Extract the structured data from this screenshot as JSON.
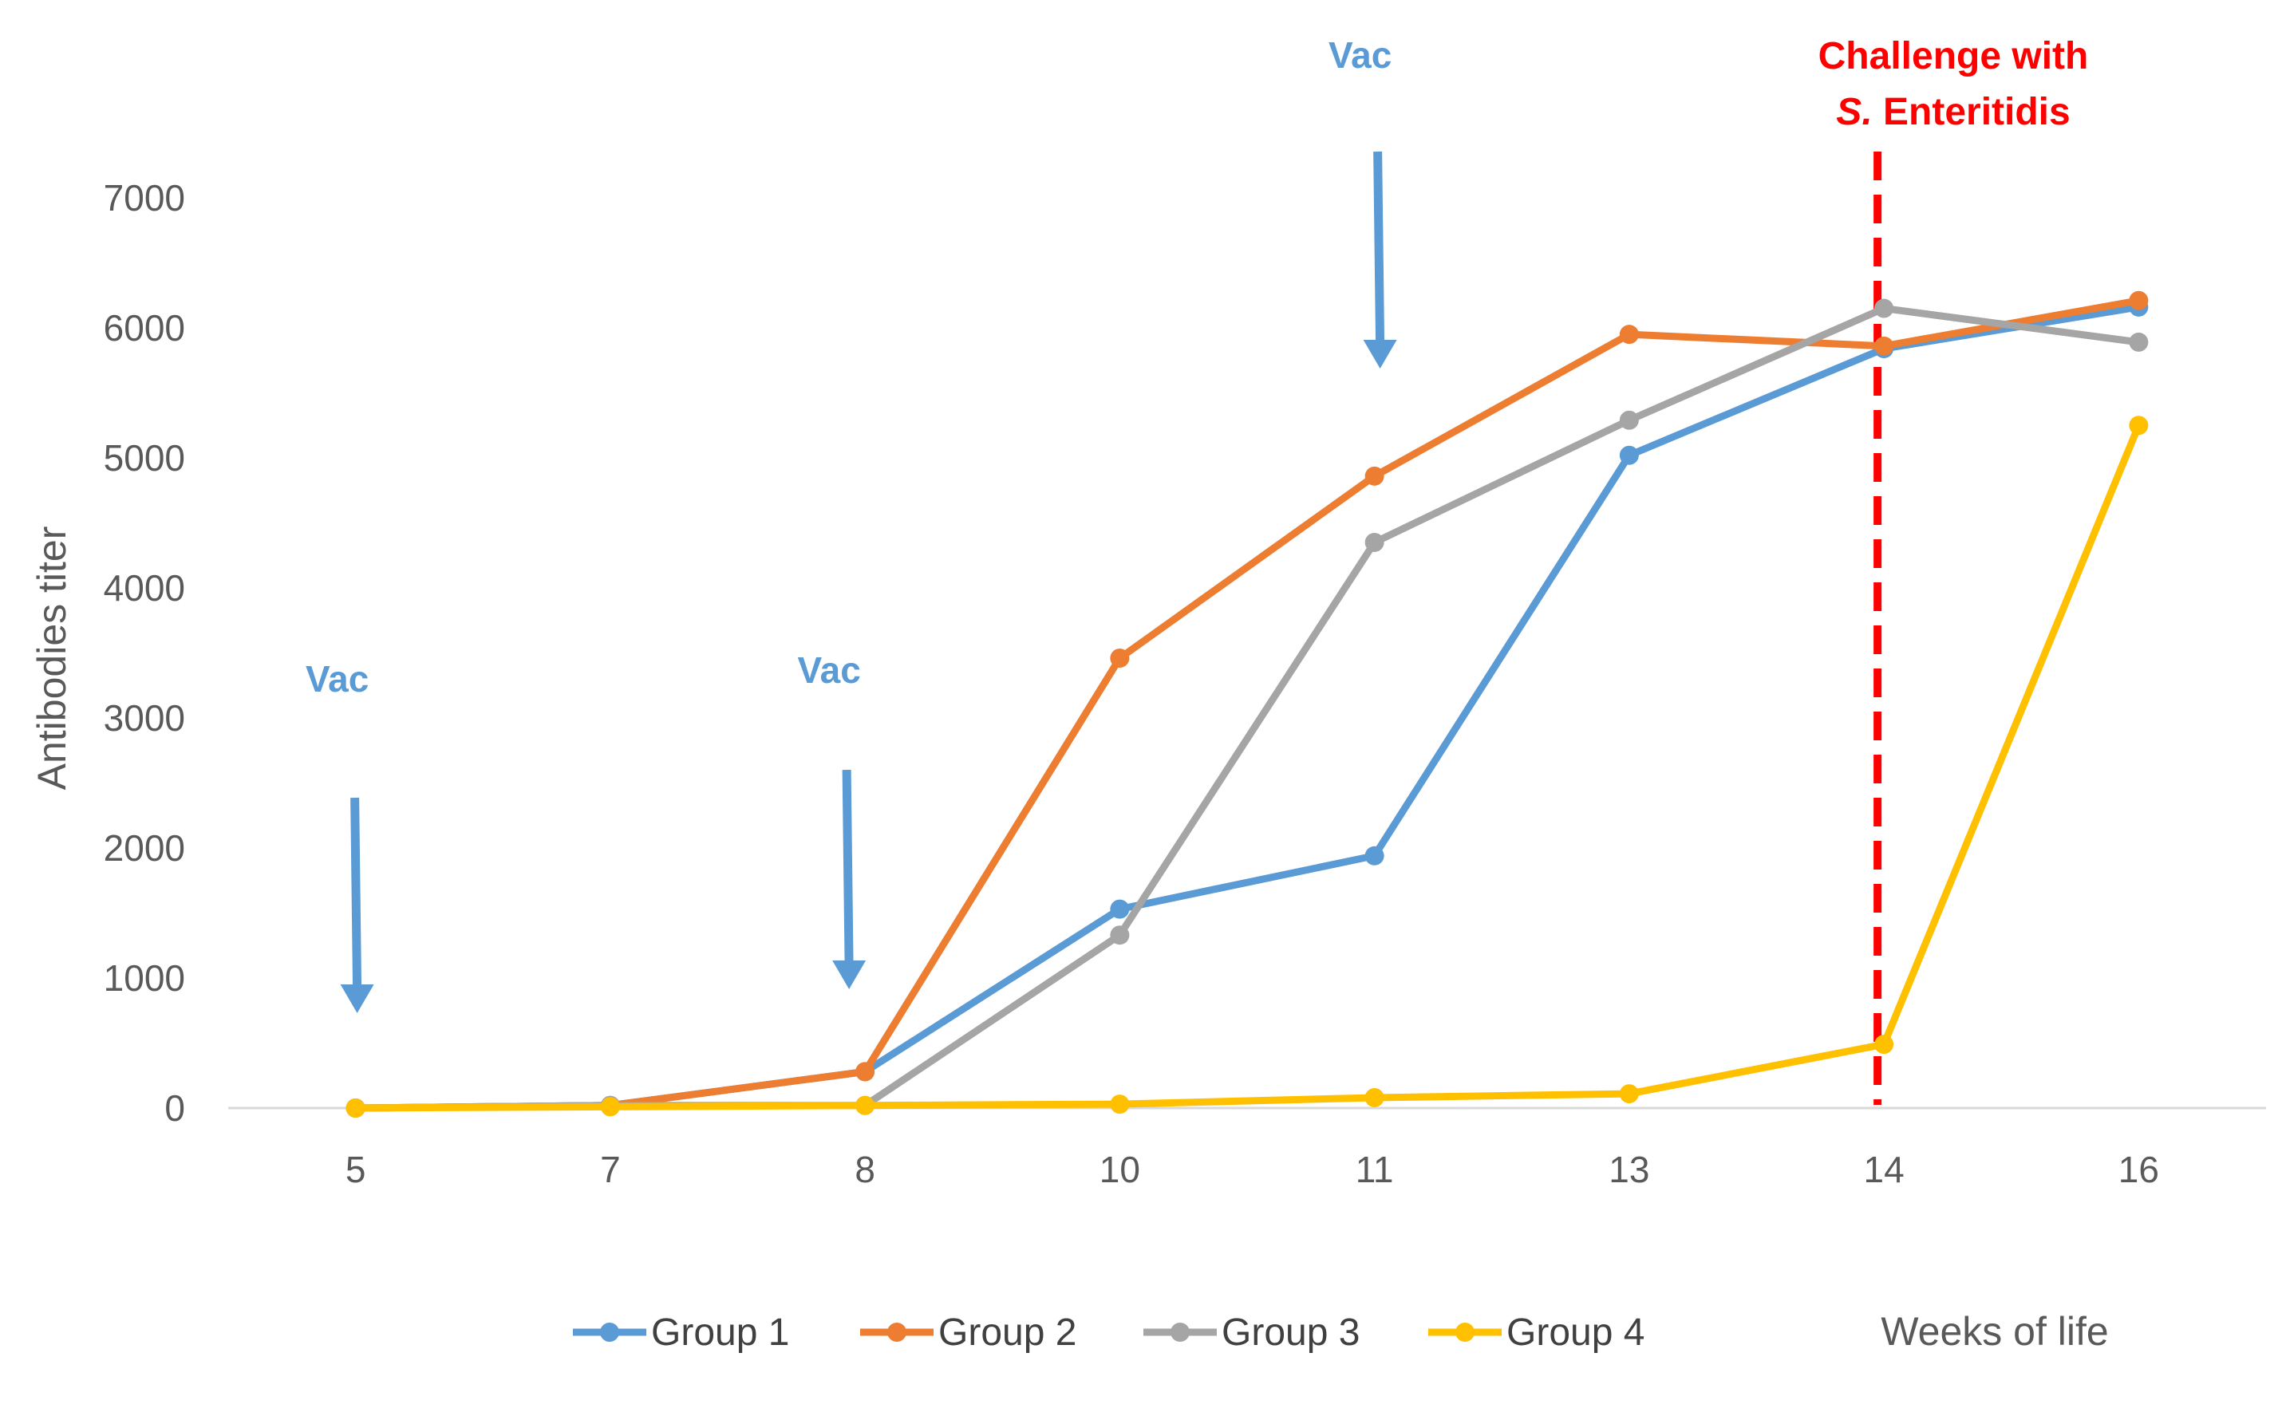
{
  "chart_data": {
    "type": "line",
    "categories": [
      "5",
      "7",
      "8",
      "10",
      "11",
      "13",
      "14",
      "16"
    ],
    "ylabel": "Antibodies titer",
    "xlabel": "Weeks of life",
    "ylim": [
      0,
      7000
    ],
    "yticks": [
      0,
      1000,
      2000,
      3000,
      4000,
      5000,
      6000,
      7000
    ],
    "grid": false,
    "legend_position": "bottom",
    "series": [
      {
        "name": "Group 1",
        "color": "#5B9BD5",
        "values": [
          0,
          20,
          280,
          1530,
          1940,
          5020,
          5840,
          6160
        ]
      },
      {
        "name": "Group 2",
        "color": "#ED7D31",
        "values": [
          0,
          20,
          280,
          3460,
          4860,
          5950,
          5860,
          6210
        ]
      },
      {
        "name": "Group 3",
        "color": "#A5A5A5",
        "values": [
          0,
          20,
          20,
          1330,
          4350,
          5290,
          6150,
          5890
        ]
      },
      {
        "name": "Group 4",
        "color": "#FFC000",
        "values": [
          0,
          10,
          20,
          30,
          80,
          110,
          490,
          5250
        ]
      }
    ],
    "annotations": {
      "vac_color": "#5B9BD5",
      "vaccinations": [
        {
          "label": "Vac",
          "week": "5"
        },
        {
          "label": "Vac",
          "week": "8"
        },
        {
          "label": "Vac",
          "week": "11"
        }
      ],
      "challenge": {
        "color": "#FF0000",
        "week": "14",
        "line1": "Challenge with",
        "line2_italic": "S.",
        "line2_rest": " Enteritidis"
      }
    }
  }
}
